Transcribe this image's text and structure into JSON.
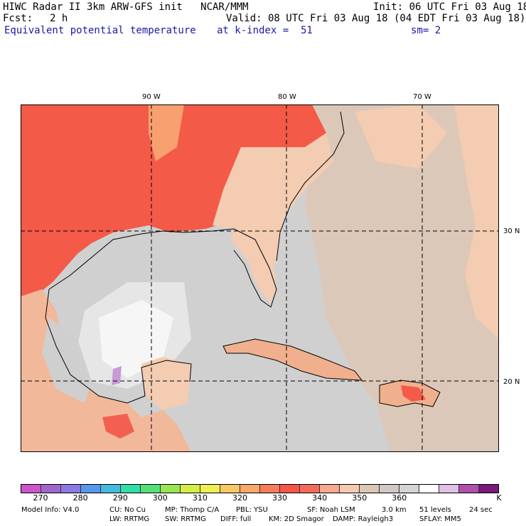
{
  "header": {
    "title": "HIWC Radar II 3km ARW-GFS init   NCAR/MMM",
    "init": "Init: 06 UTC Fri 03 Aug 18",
    "fcst_label": "Fcst:",
    "fcst_value": "2 h",
    "valid": "Valid: 08 UTC Fri 03 Aug 18 (04 EDT Fri 03 Aug 18)",
    "field": "Equivalent potential temperature",
    "level": "at k-index =  51",
    "smooth": "sm= 2"
  },
  "map": {
    "lon_labels": [
      "90 W",
      "80 W",
      "70 W"
    ],
    "lat_labels": [
      "30 N",
      "20 N"
    ]
  },
  "colorbar": {
    "colors": [
      "#cc55cc",
      "#a066cc",
      "#8a7ae6",
      "#5599ee",
      "#44bbdd",
      "#33dda8",
      "#55e077",
      "#99e655",
      "#d4ee44",
      "#eeee55",
      "#f6c866",
      "#f8a868",
      "#f67c5a",
      "#f65548",
      "#f66a5c",
      "#f7a88e",
      "#f5cbb0",
      "#dcc6b6",
      "#d0c8c4",
      "#d4d4d4",
      "#ffffff",
      "#e0c0e6",
      "#b050aa",
      "#7a1a7a"
    ],
    "labels": [
      "270",
      "280",
      "290",
      "300",
      "310",
      "320",
      "330",
      "340",
      "350",
      "360"
    ],
    "unit": "K"
  },
  "footer": {
    "line1": [
      "Model Info: V4.0",
      "CU: No Cu",
      "MP: Thomp C/A",
      "PBL: YSU",
      "SF: Noah LSM",
      "3.0 km",
      "51 levels",
      "24 sec"
    ],
    "line2": [
      "LW: RRTMG",
      "SW: RRTMG",
      "DIFF: full",
      "KM: 2D Smagor",
      "DAMP: Rayleigh3",
      "SFLAY: MM5"
    ]
  }
}
